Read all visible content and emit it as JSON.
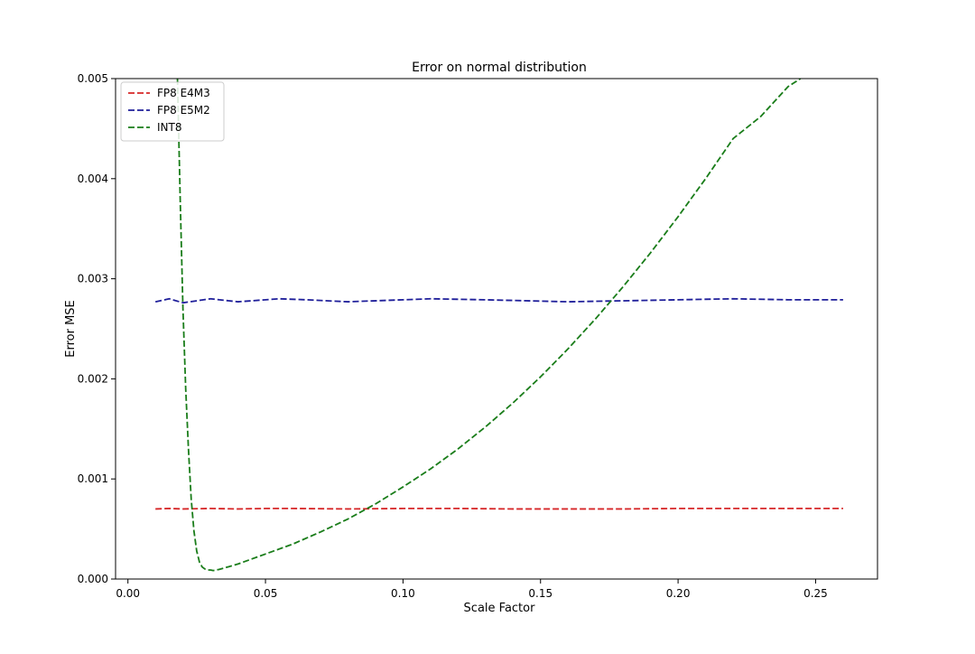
{
  "chart_data": {
    "type": "line",
    "title": "Error on normal distribution",
    "xlabel": "Scale Factor",
    "ylabel": "Error MSE",
    "xlim": [
      -0.0045,
      0.2725
    ],
    "ylim": [
      0,
      0.005
    ],
    "x_ticks": [
      0.0,
      0.05,
      0.1,
      0.15,
      0.2,
      0.25
    ],
    "x_tick_labels": [
      "0.00",
      "0.05",
      "0.10",
      "0.15",
      "0.20",
      "0.25"
    ],
    "y_ticks": [
      0.0,
      0.001,
      0.002,
      0.003,
      0.004,
      0.005
    ],
    "y_tick_labels": [
      "0.000",
      "0.001",
      "0.002",
      "0.003",
      "0.004",
      "0.005"
    ],
    "grid": false,
    "legend_position": "upper-left",
    "series": [
      {
        "name": "FP8 E4M3",
        "color": "#d62728",
        "style": "dashed",
        "x": [
          0.01,
          0.015,
          0.02,
          0.03,
          0.04,
          0.05,
          0.06,
          0.08,
          0.1,
          0.12,
          0.14,
          0.16,
          0.18,
          0.2,
          0.22,
          0.24,
          0.26
        ],
        "y": [
          0.0007,
          0.000705,
          0.0007,
          0.000705,
          0.0007,
          0.000705,
          0.000705,
          0.0007,
          0.000705,
          0.000705,
          0.0007,
          0.0007,
          0.0007,
          0.000705,
          0.000705,
          0.000705,
          0.000705
        ]
      },
      {
        "name": "FP8 E5M2",
        "color": "#1f1f9a",
        "style": "dashed",
        "x": [
          0.01,
          0.015,
          0.02,
          0.03,
          0.04,
          0.055,
          0.065,
          0.08,
          0.1,
          0.11,
          0.13,
          0.16,
          0.18,
          0.2,
          0.22,
          0.24,
          0.26
        ],
        "y": [
          0.00277,
          0.0028,
          0.00276,
          0.0028,
          0.00277,
          0.0028,
          0.00279,
          0.00277,
          0.00279,
          0.0028,
          0.00279,
          0.00277,
          0.00278,
          0.00279,
          0.0028,
          0.00279,
          0.00279
        ]
      },
      {
        "name": "INT8",
        "color": "#1a7d1a",
        "style": "dashed",
        "x": [
          0.018,
          0.019,
          0.02,
          0.021,
          0.022,
          0.023,
          0.024,
          0.025,
          0.026,
          0.027,
          0.028,
          0.029,
          0.03,
          0.031,
          0.033,
          0.035,
          0.04,
          0.045,
          0.05,
          0.06,
          0.07,
          0.08,
          0.09,
          0.1,
          0.11,
          0.12,
          0.13,
          0.14,
          0.15,
          0.16,
          0.17,
          0.18,
          0.19,
          0.2,
          0.21,
          0.22,
          0.23,
          0.24,
          0.2445
        ],
        "y": [
          0.005,
          0.0038,
          0.0027,
          0.0019,
          0.0013,
          0.0008,
          0.00048,
          0.00028,
          0.00017,
          0.00012,
          0.0001,
          9e-05,
          9e-05,
          8.5e-05,
          9.5e-05,
          0.00011,
          0.00015,
          0.0002,
          0.00025,
          0.00035,
          0.00047,
          0.0006,
          0.00075,
          0.00092,
          0.0011,
          0.0013,
          0.00152,
          0.00176,
          0.00202,
          0.0023,
          0.0026,
          0.00292,
          0.00326,
          0.00362,
          0.004,
          0.0044,
          0.00462,
          0.00492,
          0.005
        ]
      }
    ]
  }
}
